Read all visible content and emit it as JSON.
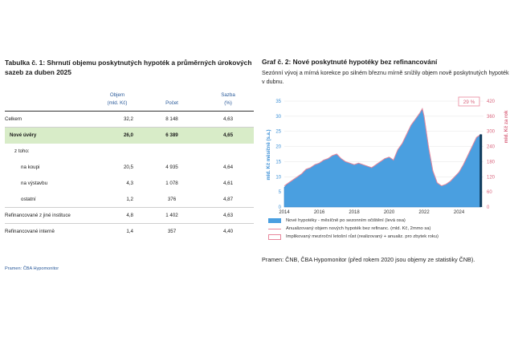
{
  "table": {
    "title": "Tabulka č. 1: Shrnutí objemu poskytnutých hypoték a průměrných úrokových sazeb za duben 2025",
    "headers": [
      {
        "line1": "Objem",
        "line2": "(mld. Kč)"
      },
      {
        "line1": "Počet",
        "line2": ""
      },
      {
        "line1": "Sazba",
        "line2": "(%)"
      }
    ],
    "rows": [
      {
        "label": "Celkem",
        "objem": "32,2",
        "pocet": "8 148",
        "sazba": "4,63"
      },
      {
        "label": "Nové úvěry",
        "objem": "26,0",
        "pocet": "6 389",
        "sazba": "4,65"
      },
      {
        "label": "z toho:",
        "objem": "",
        "pocet": "",
        "sazba": ""
      },
      {
        "label": "na koupi",
        "objem": "20,5",
        "pocet": "4 935",
        "sazba": "4,64"
      },
      {
        "label": "na výstavbu",
        "objem": "4,3",
        "pocet": "1 078",
        "sazba": "4,61"
      },
      {
        "label": "ostatní",
        "objem": "1,2",
        "pocet": "376",
        "sazba": "4,87"
      },
      {
        "label": "Refinancované z jiné instituce",
        "objem": "4,8",
        "pocet": "1 402",
        "sazba": "4,63"
      },
      {
        "label": "Refinancované interně",
        "objem": "1,4",
        "pocet": "357",
        "sazba": "4,40"
      }
    ],
    "source": "Pramen: ČBA Hypomonitor"
  },
  "graph": {
    "title": "Graf č. 2: Nové poskytnuté hypotéky bez refinancování",
    "subtitle": "Sezónní vývoj a mírná korekce po silném březnu mírně snížily objem nově poskytnutých hypoték v dubnu.",
    "source": "Pramen: ČNB, ČBA Hypomonitor (před rokem 2020 jsou objemy ze statistiky ČNB).",
    "legend": [
      "Nové hypotéky - měsíčně po sezonním očištění (levá osa)",
      "Anualizovaný objem nových hypoték bez refinanc. (mld. Kč, 2mmo sa)",
      "Implikovaný meziroční letošní růst (realizovaný + anualiz. pro zbytek roku)"
    ],
    "badge": "29 %"
  },
  "chart_data": {
    "type": "area",
    "ylabel": "mld. Kč měsíčně (s.a.)",
    "y2label": "mld. Kč za rok",
    "ylim": [
      0,
      35
    ],
    "y2lim": [
      0,
      420
    ],
    "yticks": [
      0,
      5,
      10,
      15,
      20,
      25,
      30,
      35
    ],
    "y2ticks": [
      0,
      60,
      120,
      180,
      240,
      300,
      360,
      420
    ],
    "xticks": [
      "2014",
      "2016",
      "2018",
      "2020",
      "2022",
      "2024"
    ],
    "xlim": [
      2014,
      2025.4
    ],
    "series": [
      {
        "name": "Nové hypotéky - měsíčně po sezonním očištění (levá osa)",
        "x": [
          2014.0,
          2014.25,
          2014.5,
          2014.75,
          2015.0,
          2015.25,
          2015.5,
          2015.75,
          2016.0,
          2016.25,
          2016.5,
          2016.75,
          2017.0,
          2017.25,
          2017.5,
          2017.75,
          2018.0,
          2018.25,
          2018.5,
          2018.75,
          2019.0,
          2019.25,
          2019.5,
          2019.75,
          2020.0,
          2020.25,
          2020.5,
          2020.75,
          2021.0,
          2021.25,
          2021.5,
          2021.75,
          2021.9,
          2022.0,
          2022.25,
          2022.5,
          2022.75,
          2023.0,
          2023.25,
          2023.5,
          2023.75,
          2024.0,
          2024.25,
          2024.5,
          2024.75,
          2025.0,
          2025.25
        ],
        "values": [
          6.5,
          8,
          9,
          10,
          11,
          12.5,
          13,
          14,
          14.5,
          15.5,
          16,
          17,
          17.5,
          16,
          15,
          14.5,
          14,
          14.5,
          14,
          13.5,
          13,
          14,
          15,
          16,
          16.5,
          15.5,
          19,
          21,
          24,
          27,
          29,
          31,
          32.5,
          30,
          20,
          12,
          8,
          7,
          7.5,
          8.5,
          10,
          11.5,
          14,
          17,
          20,
          23,
          24
        ]
      },
      {
        "name": "Anualizovaný objem nových hypoték bez refinanc. (mld. Kč, 2mmo sa)",
        "x": [
          2014.0,
          2014.25,
          2014.5,
          2014.75,
          2015.0,
          2015.25,
          2015.5,
          2015.75,
          2016.0,
          2016.25,
          2016.5,
          2016.75,
          2017.0,
          2017.25,
          2017.5,
          2017.75,
          2018.0,
          2018.25,
          2018.5,
          2018.75,
          2019.0,
          2019.25,
          2019.5,
          2019.75,
          2020.0,
          2020.25,
          2020.5,
          2020.75,
          2021.0,
          2021.25,
          2021.5,
          2021.75,
          2021.9,
          2022.0,
          2022.25,
          2022.5,
          2022.75,
          2023.0,
          2023.25,
          2023.5,
          2023.75,
          2024.0,
          2024.25,
          2024.5,
          2024.75,
          2025.0,
          2025.25
        ],
        "values": [
          84,
          96,
          108,
          120,
          132,
          150,
          156,
          168,
          174,
          186,
          192,
          204,
          210,
          192,
          180,
          174,
          168,
          174,
          168,
          162,
          156,
          168,
          180,
          192,
          198,
          186,
          228,
          252,
          288,
          324,
          348,
          372,
          390,
          360,
          240,
          144,
          96,
          84,
          90,
          102,
          120,
          138,
          168,
          204,
          240,
          276,
          288
        ]
      }
    ],
    "annotation": "29 %"
  }
}
